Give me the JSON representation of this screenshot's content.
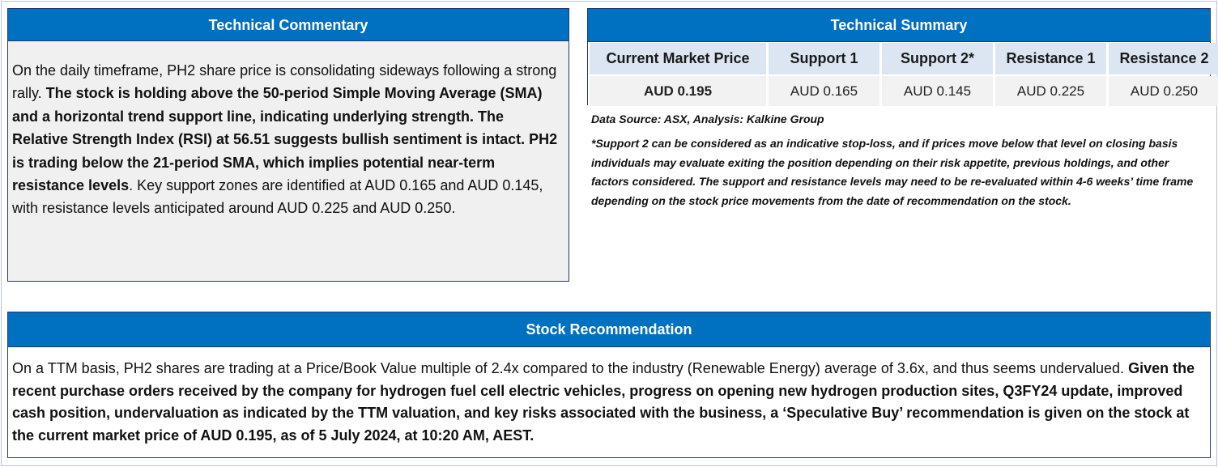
{
  "commentary": {
    "title": "Technical Commentary",
    "text_1": "On the daily timeframe, PH2 share price is consolidating sideways following a strong rally. ",
    "text_2_bold": "The stock is holding above the 50-period Simple Moving Average (SMA) and a horizontal trend support line, indicating underlying strength. The Relative Strength Index (RSI) at 56.51 suggests bullish sentiment is intact. PH2 is trading below the 21-period SMA, which implies potential near-term resistance levels",
    "text_3": ". Key support zones are identified at AUD 0.165 and AUD 0.145, with resistance levels anticipated around AUD 0.225 and AUD 0.250."
  },
  "summary": {
    "title": "Technical Summary",
    "headers": [
      "Current Market Price",
      "Support 1",
      "Support 2*",
      "Resistance 1",
      "Resistance 2"
    ],
    "values": [
      "AUD 0.195",
      "AUD 0.165",
      "AUD 0.145",
      "AUD 0.225",
      "AUD 0.250"
    ]
  },
  "notes": {
    "source": "Data Source: ASX, Analysis: Kalkine Group",
    "disclaimer": "*Support 2 can be considered as an indicative stop-loss, and if prices move below that level on closing basis individuals may evaluate exiting the position depending on their risk appetite, previous holdings, and other factors considered. The support and resistance levels may need to be re-evaluated within 4-6 weeks’ time frame depending on the stock price movements from the date of recommendation on the stock."
  },
  "recommendation": {
    "title": "Stock Recommendation",
    "text_1": "On a TTM basis, PH2 shares are trading at a Price/Book Value multiple of 2.4x compared to the industry (Renewable Energy) average of 3.6x, and thus seems undervalued. ",
    "text_2_bold": "Given the recent purchase orders received by the company for hydrogen fuel cell electric vehicles, progress on opening new hydrogen production sites, Q3FY24 update, improved cash position, undervaluation as indicated by the TTM valuation, and key risks associated with the business, a ‘Speculative Buy’ recommendation is given on the stock at the current market price of AUD 0.195, as of 5 July 2024, at 10:20 AM, AEST."
  },
  "colors": {
    "header_blue": "#0070c0",
    "border_navy": "#1f3a73",
    "table_header_bg": "#dce6f2",
    "commentary_bg": "#f0f0f0"
  }
}
